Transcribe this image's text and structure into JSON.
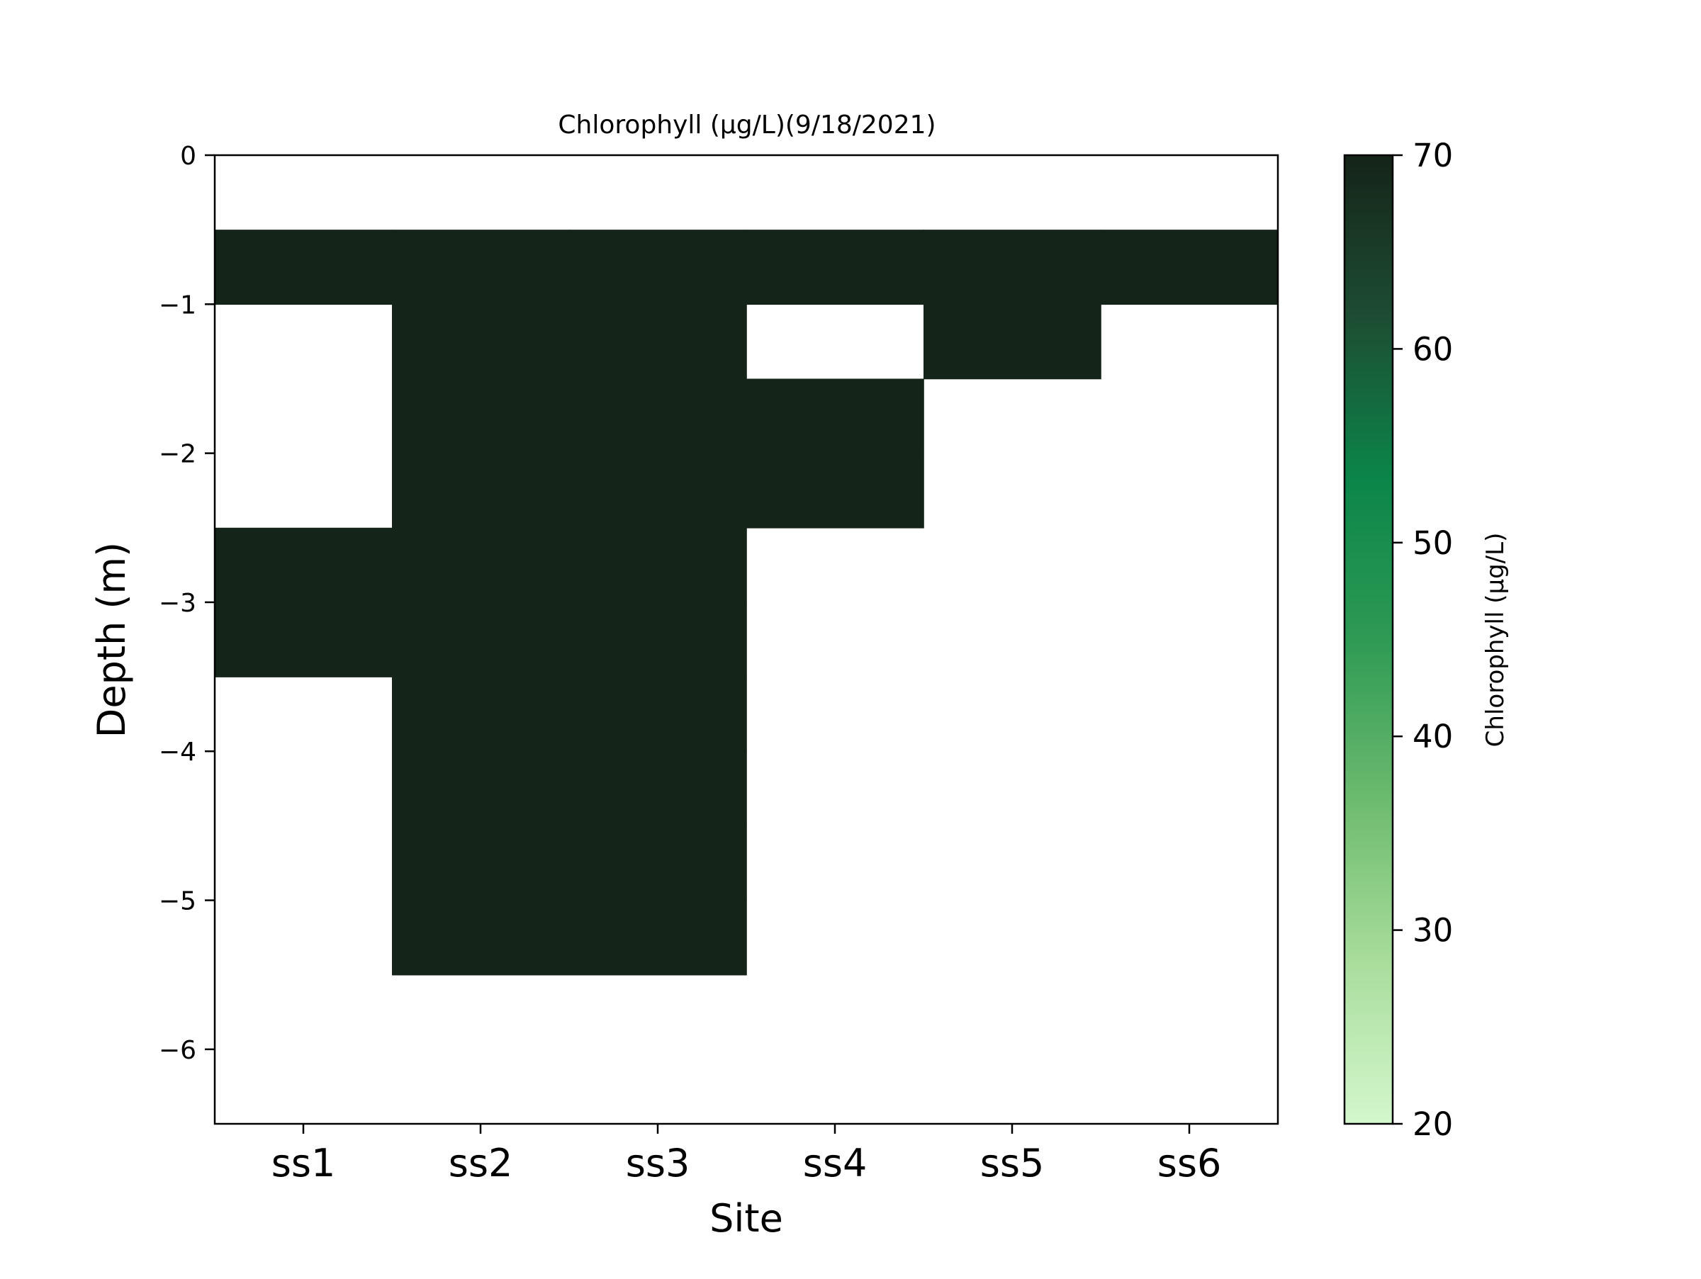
{
  "chart_data": {
    "type": "heatmap",
    "title": "Chlorophyll (µg/L)(9/18/2021)",
    "xlabel": "Site",
    "ylabel": "Depth (m)",
    "categories": [
      "ss1",
      "ss2",
      "ss3",
      "ss4",
      "ss5",
      "ss6"
    ],
    "y_ticks": [
      "0",
      "−1",
      "−2",
      "−3",
      "−4",
      "−5",
      "−6"
    ],
    "y_tick_values": [
      0,
      -1,
      -2,
      -3,
      -4,
      -5,
      -6
    ],
    "ylim": [
      -6.5,
      0
    ],
    "depth_bins": [
      [
        0,
        -0.5
      ],
      [
        -0.5,
        -1
      ],
      [
        -1,
        -1.5
      ],
      [
        -1.5,
        -2
      ],
      [
        -2,
        -2.5
      ],
      [
        -2.5,
        -3
      ],
      [
        -3,
        -3.5
      ],
      [
        -3.5,
        -4
      ],
      [
        -4,
        -4.5
      ],
      [
        -4.5,
        -5
      ],
      [
        -5,
        -5.5
      ],
      [
        -5.5,
        -6
      ],
      [
        -6,
        -6.5
      ]
    ],
    "values": [
      [
        null,
        null,
        null,
        null,
        null,
        null
      ],
      [
        70,
        70,
        70,
        70,
        70,
        70
      ],
      [
        null,
        70,
        70,
        null,
        70,
        null
      ],
      [
        null,
        70,
        70,
        70,
        null,
        null
      ],
      [
        null,
        70,
        70,
        70,
        null,
        null
      ],
      [
        70,
        70,
        70,
        null,
        null,
        null
      ],
      [
        70,
        70,
        70,
        null,
        null,
        null
      ],
      [
        null,
        70,
        70,
        null,
        null,
        null
      ],
      [
        null,
        70,
        70,
        null,
        null,
        null
      ],
      [
        null,
        70,
        70,
        null,
        null,
        null
      ],
      [
        null,
        70,
        70,
        null,
        null,
        null
      ],
      [
        null,
        null,
        null,
        null,
        null,
        null
      ],
      [
        null,
        null,
        null,
        null,
        null,
        null
      ]
    ],
    "colorbar": {
      "label": "Chlorophyll (µg/L)",
      "range": [
        20,
        70
      ],
      "ticks": [
        "20",
        "30",
        "40",
        "50",
        "60",
        "70"
      ],
      "tick_values": [
        20,
        30,
        40,
        50,
        60,
        70
      ],
      "colors": [
        "#d4f7cd",
        "#a9dd9c",
        "#6dbb6f",
        "#2e9a54",
        "#0b8549",
        "#1d4d33",
        "#152418"
      ]
    },
    "grid": false
  }
}
